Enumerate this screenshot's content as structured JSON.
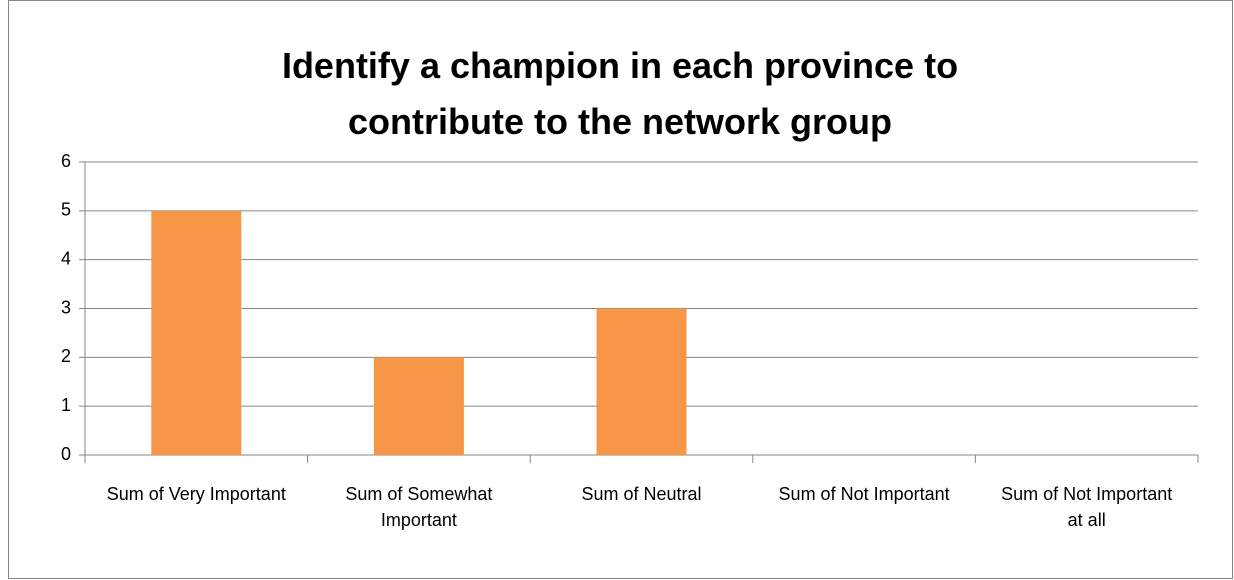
{
  "chart_data": {
    "type": "bar",
    "title": "Identify a champion in each province to contribute to the network group",
    "categories": [
      "Sum of Very Important",
      "Sum of Somewhat Important",
      "Sum of Neutral",
      "Sum of Not Important",
      "Sum of Not Important at all"
    ],
    "values": [
      5,
      2,
      3,
      0,
      0
    ],
    "color": "#f79646",
    "ylim": [
      0,
      6
    ],
    "yticks": [
      0,
      1,
      2,
      3,
      4,
      5,
      6
    ],
    "grid": true
  }
}
